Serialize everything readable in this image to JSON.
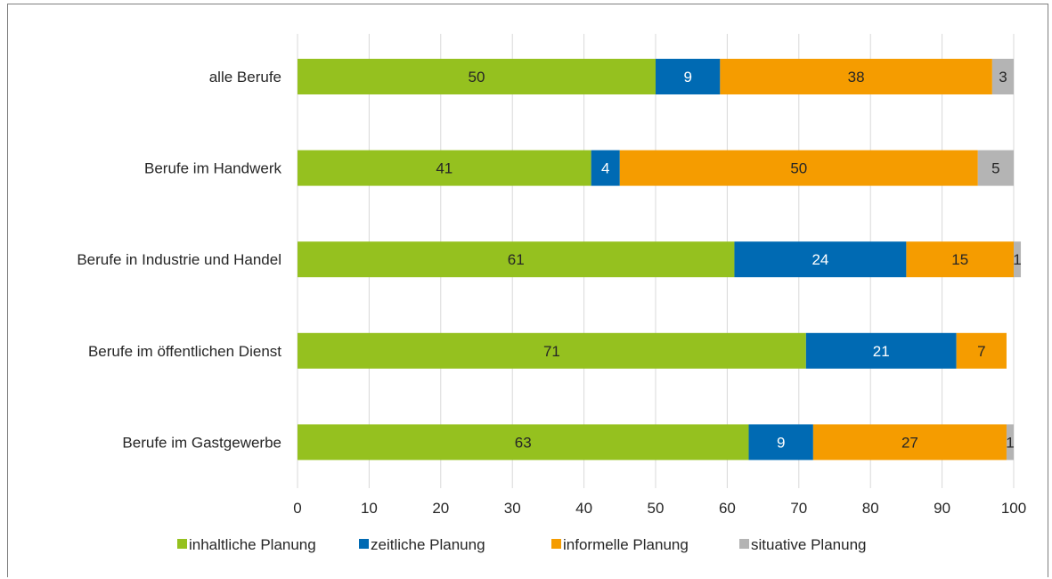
{
  "chart_data": {
    "type": "bar",
    "orientation": "horizontal",
    "stacked": true,
    "categories": [
      "alle Berufe",
      "Berufe im Handwerk",
      "Berufe in Industrie und Handel",
      "Berufe im öffentlichen Dienst",
      "Berufe im Gastgewerbe"
    ],
    "series": [
      {
        "name": "inhaltliche Planung",
        "color": "#95c11f",
        "label_color": "#262626",
        "values": [
          50,
          41,
          61,
          71,
          63
        ],
        "labels": [
          "50",
          "41",
          "61",
          "71",
          "63"
        ]
      },
      {
        "name": "zeitliche Planung",
        "color": "#006ab3",
        "label_color": "#ffffff",
        "values": [
          9,
          4,
          24,
          21,
          9
        ],
        "labels": [
          "9",
          "4",
          "24",
          "21",
          "9"
        ]
      },
      {
        "name": "informelle Planung",
        "color": "#f59c00",
        "label_color": "#262626",
        "values": [
          38,
          50,
          15,
          7,
          27
        ],
        "labels": [
          "38",
          "50",
          "15",
          "7",
          "27"
        ]
      },
      {
        "name": "situative Planung",
        "color": "#b4b4b4",
        "label_color": "#262626",
        "values": [
          3,
          5,
          1,
          0,
          1
        ],
        "labels": [
          "3",
          "5",
          "1",
          "",
          "1"
        ]
      }
    ],
    "xlim": [
      0,
      100
    ],
    "xticks": [
      "0",
      "10",
      "20",
      "30",
      "40",
      "50",
      "60",
      "70",
      "80",
      "90",
      "100"
    ],
    "grid": "vertical",
    "legend": "bottom",
    "title": "",
    "xlabel": "",
    "ylabel": ""
  }
}
